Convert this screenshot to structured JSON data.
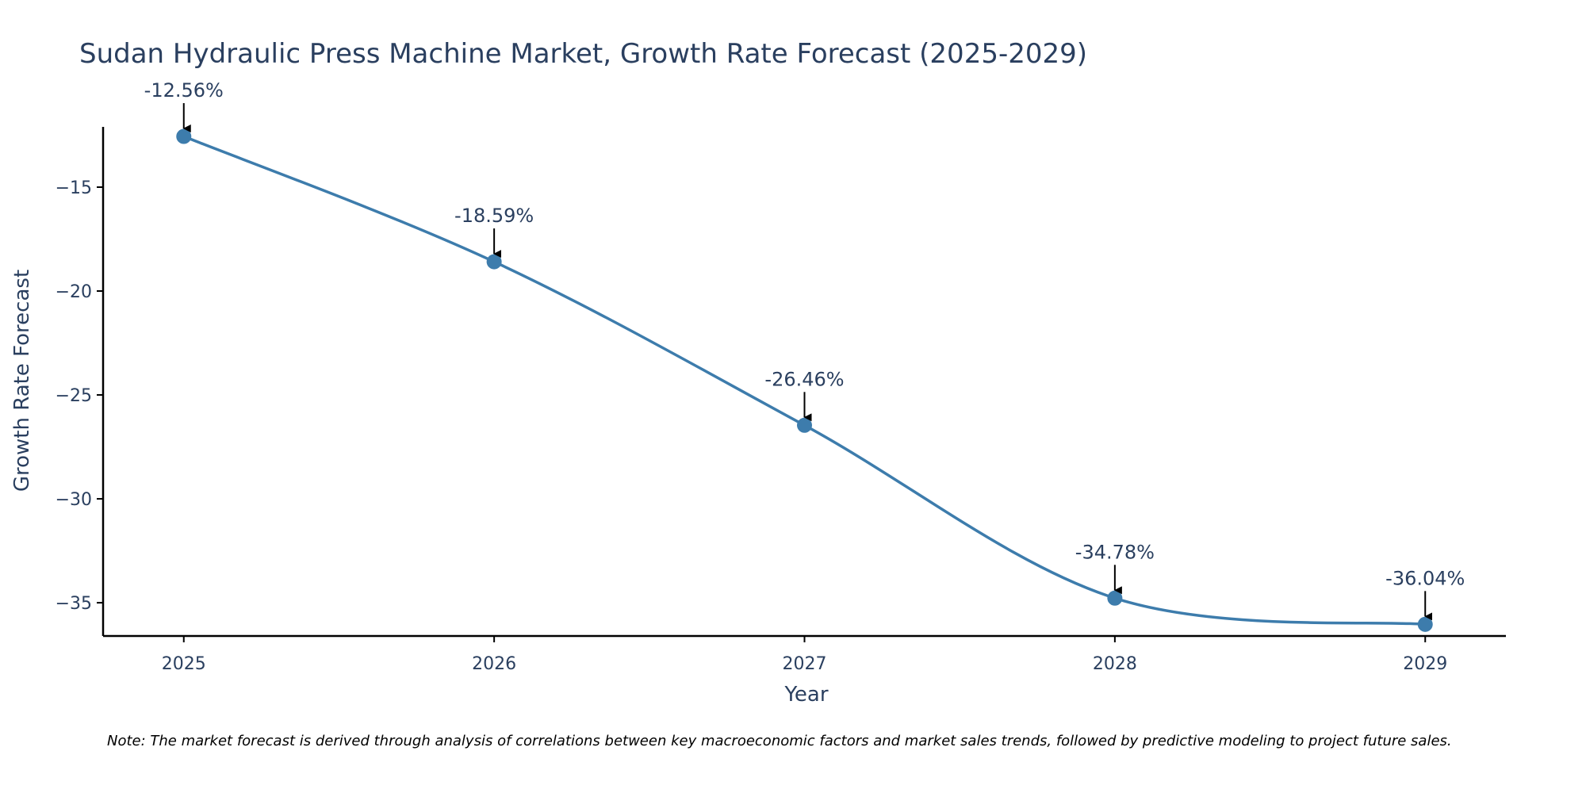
{
  "colors": {
    "line": "#3d7cac",
    "marker": "#3d7cac",
    "text": "#2a3f5f",
    "axis": "#000000",
    "arrow": "#000000",
    "note_text": "#000000"
  },
  "chart_data": {
    "type": "line",
    "title": "Sudan Hydraulic Press Machine Market, Growth Rate Forecast (2025-2029)",
    "xlabel": "Year",
    "ylabel": "Growth Rate Forecast",
    "x": [
      2025,
      2026,
      2027,
      2028,
      2029
    ],
    "x_tick_labels": [
      "2025",
      "2026",
      "2027",
      "2028",
      "2029"
    ],
    "series": [
      {
        "name": "Growth Rate Forecast",
        "values": [
          -12.56,
          -18.59,
          -26.46,
          -34.78,
          -36.04
        ],
        "labels": [
          "-12.56%",
          "-18.59%",
          "-26.46%",
          "-34.78%",
          "-36.04%"
        ]
      }
    ],
    "y_ticks": [
      -15,
      -20,
      -25,
      -30,
      -35
    ],
    "y_tick_labels": [
      "−15",
      "−20",
      "−25",
      "−30",
      "−35"
    ],
    "xlim": [
      2024.74,
      2029.26
    ],
    "ylim": [
      -36.6,
      -12.1
    ],
    "grid": false,
    "line_shape": "spline"
  },
  "note": "Note: The market forecast is derived through analysis of correlations between key macroeconomic factors and market sales trends, followed by predictive modeling to project future sales."
}
